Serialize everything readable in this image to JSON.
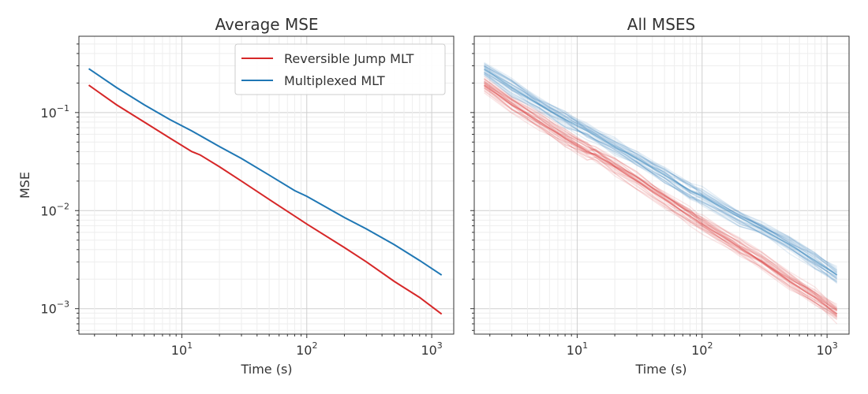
{
  "chart_data": [
    {
      "type": "line",
      "title": "Average MSE",
      "xlabel": "Time (s)",
      "ylabel": "MSE",
      "xscale": "log",
      "yscale": "log",
      "xlim": [
        1.5,
        1500
      ],
      "ylim": [
        0.00055,
        0.6
      ],
      "xticks": [
        "10^1",
        "10^2",
        "10^3"
      ],
      "yticks": [
        "10^-3",
        "10^-2",
        "10^-1"
      ],
      "grid": true,
      "legend": {
        "placement": "top-right",
        "entries": [
          "Reversible Jump MLT",
          "Multiplexed MLT"
        ]
      },
      "series": [
        {
          "name": "Reversible Jump MLT",
          "color": "#d62728",
          "x": [
            1.8,
            3,
            5,
            8,
            12,
            14,
            20,
            30,
            50,
            80,
            100,
            200,
            300,
            500,
            800,
            1200
          ],
          "y": [
            0.19,
            0.12,
            0.08,
            0.055,
            0.04,
            0.037,
            0.028,
            0.02,
            0.013,
            0.0088,
            0.0073,
            0.0042,
            0.003,
            0.0019,
            0.0013,
            0.00088
          ]
        },
        {
          "name": "Multiplexed MLT",
          "color": "#1f77b4",
          "x": [
            1.8,
            3,
            5,
            8,
            12,
            20,
            30,
            50,
            80,
            100,
            200,
            300,
            500,
            800,
            1200
          ],
          "y": [
            0.28,
            0.18,
            0.12,
            0.085,
            0.065,
            0.045,
            0.034,
            0.023,
            0.016,
            0.014,
            0.0085,
            0.0065,
            0.0045,
            0.0031,
            0.0022
          ]
        }
      ]
    },
    {
      "type": "line",
      "title": "All MSES",
      "xlabel": "Time (s)",
      "ylabel": "",
      "xscale": "log",
      "yscale": "log",
      "xlim": [
        1.5,
        1500
      ],
      "ylim": [
        0.00055,
        0.6
      ],
      "xticks": [
        "10^1",
        "10^2",
        "10^3"
      ],
      "grid": true,
      "series": [
        {
          "name": "",
          "color": "#d62728",
          "opacity": 0.12,
          "count": 30,
          "spread": 0.15,
          "x": [
            1.8,
            3,
            5,
            8,
            12,
            14,
            20,
            30,
            50,
            80,
            100,
            200,
            300,
            500,
            800,
            1200
          ],
          "y": [
            0.19,
            0.12,
            0.08,
            0.055,
            0.04,
            0.037,
            0.028,
            0.02,
            0.013,
            0.0088,
            0.0073,
            0.0042,
            0.003,
            0.0019,
            0.0013,
            0.00088
          ]
        },
        {
          "name": "",
          "color": "#1f77b4",
          "opacity": 0.12,
          "count": 30,
          "spread": 0.15,
          "x": [
            1.8,
            3,
            5,
            8,
            12,
            20,
            30,
            50,
            80,
            100,
            200,
            300,
            500,
            800,
            1200
          ],
          "y": [
            0.28,
            0.18,
            0.12,
            0.085,
            0.065,
            0.045,
            0.034,
            0.023,
            0.016,
            0.014,
            0.0085,
            0.0065,
            0.0045,
            0.0031,
            0.0022
          ]
        }
      ]
    }
  ]
}
